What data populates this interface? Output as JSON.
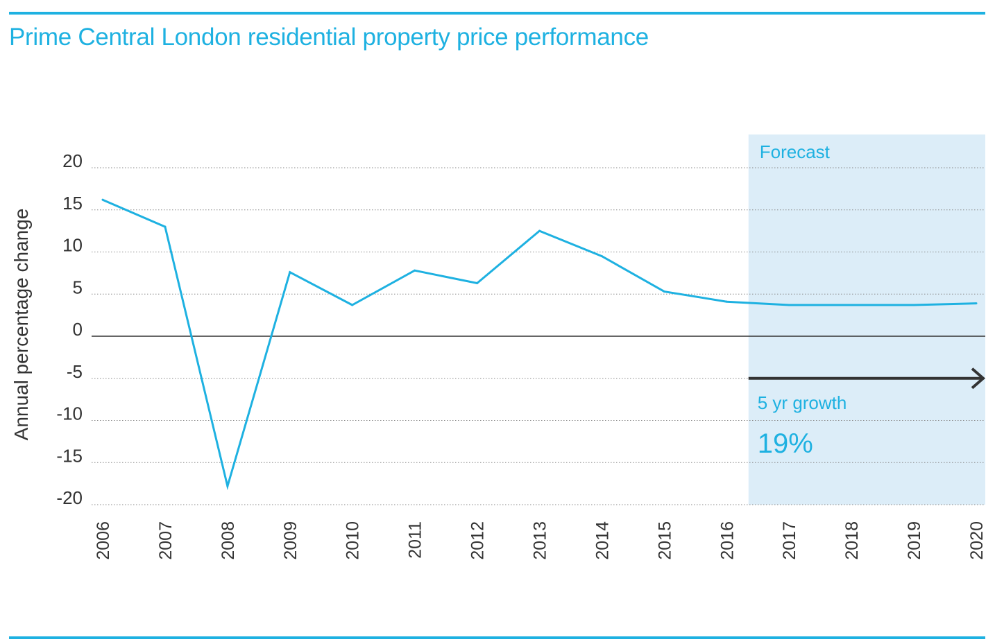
{
  "title": "Prime Central London residential property price performance",
  "colors": {
    "accent": "#1eb1e1",
    "forecast_band": "#dcedf8",
    "axis": "#333333",
    "arrow": "#333333"
  },
  "chart_data": {
    "type": "line",
    "title": "Prime Central London residential property price performance",
    "xlabel": "",
    "ylabel": "Annual percentage change",
    "x": [
      "2006",
      "2007",
      "2008",
      "2009",
      "2010",
      "2011",
      "2012",
      "2013",
      "2014",
      "2015",
      "2016",
      "2017",
      "2018",
      "2019",
      "2020"
    ],
    "series": [
      {
        "values": [
          16.2,
          13.0,
          -17.8,
          7.6,
          3.7,
          7.8,
          6.3,
          12.5,
          9.5,
          5.3,
          4.1,
          3.7,
          3.7,
          3.7,
          3.9
        ]
      }
    ],
    "ylim": [
      -20,
      20
    ],
    "yticks": [
      20,
      15,
      10,
      5,
      0,
      -5,
      -10,
      -15,
      -20
    ],
    "ytick_labels": [
      "20",
      "15",
      "10",
      "5",
      "0",
      "-5",
      "-10",
      "-15",
      "-20"
    ],
    "grid": "horizontal dotted",
    "forecast": {
      "label": "Forecast",
      "start": "2016",
      "end": "2020",
      "arrow_label": "5 yr growth",
      "growth_value": "19%"
    }
  }
}
